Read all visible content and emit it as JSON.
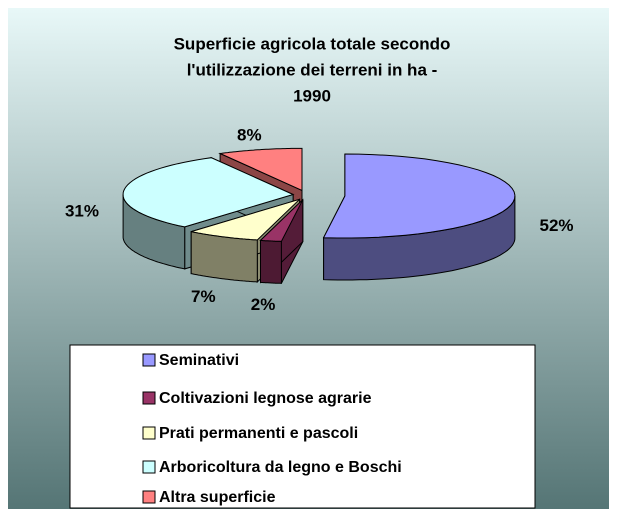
{
  "chart_data": {
    "type": "pie3d",
    "title": [
      "Superficie agricola totale secondo",
      "l'utilizzazione dei terreni in ha -",
      "1990"
    ],
    "categories": [
      "Seminativi",
      "Coltivazioni legnose agrarie",
      "Prati permanenti e pascoli",
      "Arboricoltura da legno e Boschi",
      "Altra superficie"
    ],
    "values": [
      52,
      2,
      7,
      31,
      8
    ],
    "value_labels": [
      "52%",
      "2%",
      "7%",
      "31%",
      "8%"
    ],
    "colors": [
      "#9999ff",
      "#993366",
      "#ffffcc",
      "#ccffff",
      "#ff8080"
    ],
    "legend": "bottom"
  }
}
